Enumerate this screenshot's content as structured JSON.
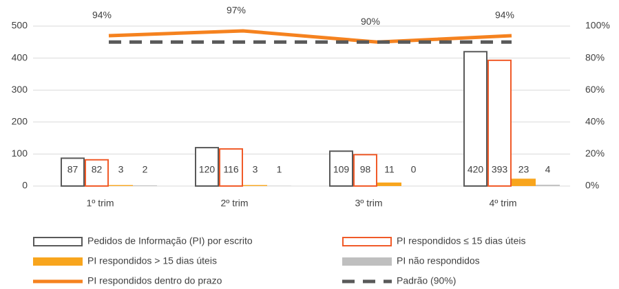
{
  "chart_data": {
    "type": "bar",
    "categories": [
      "1º trim",
      "2º trim",
      "3º trim",
      "4º trim"
    ],
    "ylim": [
      0,
      500
    ],
    "yticks": [
      0,
      100,
      200,
      300,
      400,
      500
    ],
    "y2lim": [
      0,
      100
    ],
    "y2ticks": [
      {
        "value": 0,
        "label": "0%"
      },
      {
        "value": 20,
        "label": "20%"
      },
      {
        "value": 40,
        "label": "40%"
      },
      {
        "value": 60,
        "label": "60%"
      },
      {
        "value": 80,
        "label": "80%"
      },
      {
        "value": 100,
        "label": "100%"
      }
    ],
    "series": [
      {
        "name": "Pedidos de Informação (PI) por escrito",
        "type": "bar",
        "style": "outline",
        "color": "#595959",
        "values": [
          87,
          120,
          109,
          420
        ]
      },
      {
        "name": "PI respondidos ≤ 15 dias úteis",
        "type": "bar",
        "style": "outline",
        "color": "#f05a28",
        "values": [
          82,
          116,
          98,
          393
        ]
      },
      {
        "name": "PI respondidos > 15 dias úteis",
        "type": "bar",
        "style": "fill",
        "color": "#f8a51d",
        "values": [
          3,
          3,
          11,
          23
        ]
      },
      {
        "name": "PI não respondidos",
        "type": "bar",
        "style": "fill",
        "color": "#bfbfbf",
        "values": [
          2,
          1,
          0,
          4
        ]
      },
      {
        "name": "PI respondidos dentro do prazo",
        "type": "line",
        "axis": "y2",
        "color": "#f5821f",
        "values": [
          94,
          97,
          90,
          94
        ],
        "value_labels": [
          "94%",
          "97%",
          "90%",
          "94%"
        ]
      },
      {
        "name": "Padrão (90%)",
        "type": "line",
        "axis": "y2",
        "dashed": true,
        "color": "#595959",
        "values": [
          90,
          90,
          90,
          90
        ]
      }
    ]
  }
}
